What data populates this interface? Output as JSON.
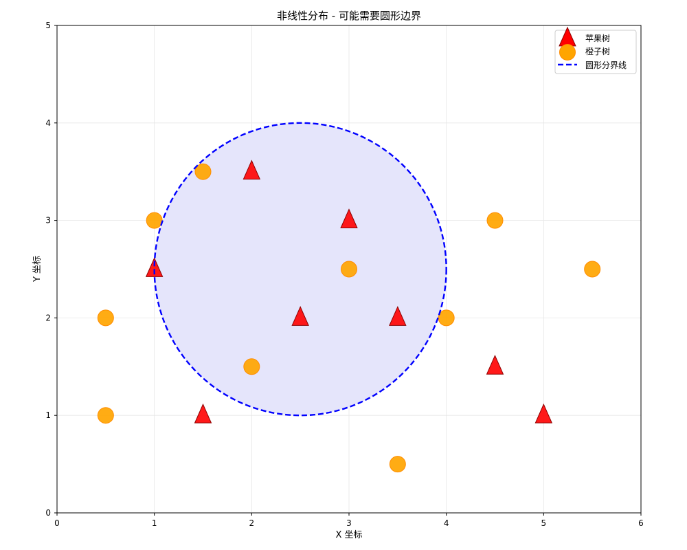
{
  "chart_data": {
    "type": "scatter",
    "title": "非线性分布 - 可能需要圆形边界",
    "xlabel": "X 坐标",
    "ylabel": "Y 坐标",
    "xlim": [
      0,
      6
    ],
    "ylim": [
      0,
      5
    ],
    "xticks": [
      "0",
      "1",
      "2",
      "3",
      "4",
      "5",
      "6"
    ],
    "yticks": [
      "0",
      "1",
      "2",
      "3",
      "4",
      "5"
    ],
    "grid": true,
    "legend_position": "top-right",
    "series": [
      {
        "name": "苹果树",
        "marker": "triangle",
        "color": "#ff0000",
        "edge_color": "#8b0000",
        "points": [
          [
            1,
            2.5
          ],
          [
            1.5,
            1
          ],
          [
            2,
            3.5
          ],
          [
            2.5,
            2
          ],
          [
            3,
            3
          ],
          [
            3.5,
            2
          ],
          [
            4.5,
            1.5
          ],
          [
            5,
            1
          ]
        ]
      },
      {
        "name": "橙子树",
        "marker": "circle",
        "color": "#ffa500",
        "edge_color": "#ff8c00",
        "points": [
          [
            0.5,
            1
          ],
          [
            0.5,
            2
          ],
          [
            1,
            3
          ],
          [
            1.5,
            3.5
          ],
          [
            2,
            1.5
          ],
          [
            3,
            2.5
          ],
          [
            3.5,
            0.5
          ],
          [
            4,
            2
          ],
          [
            4.5,
            3
          ],
          [
            5.5,
            2.5
          ]
        ]
      }
    ],
    "boundary": {
      "name": "圆形分界线",
      "shape": "circle",
      "center": [
        2.5,
        2.5
      ],
      "radius": 1.5,
      "line_color": "#0000ff",
      "line_style": "dashed",
      "fill_color": "#e5e5fb"
    }
  }
}
